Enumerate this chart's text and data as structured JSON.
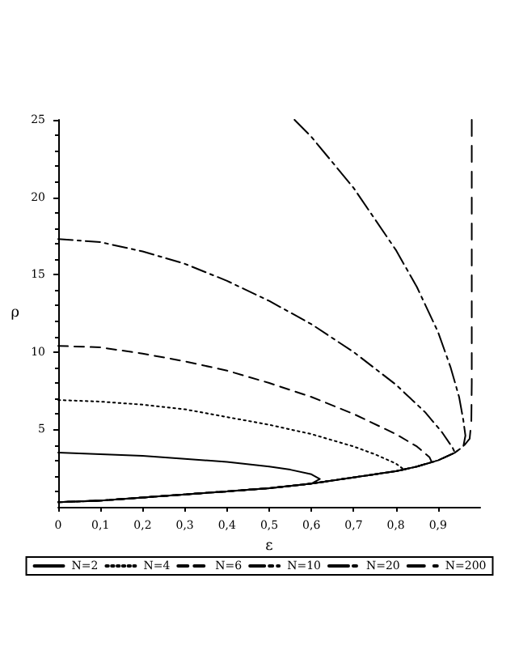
{
  "chart_data": {
    "type": "line",
    "xlabel": "ε",
    "ylabel": "ρ",
    "xlim": [
      0,
      1
    ],
    "ylim": [
      0,
      25
    ],
    "xticks": [
      0,
      {
        "value": 0.1,
        "label": "0,1"
      },
      {
        "value": 0.2,
        "label": "0,2"
      },
      {
        "value": 0.3,
        "label": "0,3"
      },
      {
        "value": 0.4,
        "label": "0,4"
      },
      {
        "value": 0.5,
        "label": "0,5"
      },
      {
        "value": 0.6,
        "label": "0,6"
      },
      {
        "value": 0.7,
        "label": "0,7"
      },
      {
        "value": 0.8,
        "label": "0,8"
      },
      {
        "value": 0.9,
        "label": "0,9"
      }
    ],
    "yticks": [
      5,
      10,
      15,
      20,
      25
    ],
    "legend": "bottom",
    "grid": false,
    "marker": "none",
    "series": [
      {
        "name": "N=2",
        "color": "#000000",
        "line_style": "solid",
        "x": [
          0,
          0.1,
          0.2,
          0.3,
          0.4,
          0.5,
          0.55,
          0.6,
          0.62,
          0.6,
          0.5,
          0.4,
          0.3,
          0.2,
          0.1,
          0
        ],
        "values": [
          3.5,
          3.4,
          3.3,
          3.1,
          2.9,
          2.6,
          2.4,
          2.1,
          1.8,
          1.5,
          1.2,
          1.0,
          0.8,
          0.6,
          0.4,
          0.3
        ]
      },
      {
        "name": "N=4",
        "color": "#000000",
        "line_style": "dotted",
        "x": [
          0,
          0.1,
          0.2,
          0.3,
          0.4,
          0.5,
          0.6,
          0.7,
          0.75,
          0.8,
          0.82,
          0.8,
          0.7,
          0.6,
          0.5,
          0.4,
          0.3,
          0.2,
          0.1,
          0
        ],
        "values": [
          6.9,
          6.8,
          6.6,
          6.3,
          5.8,
          5.3,
          4.7,
          3.9,
          3.4,
          2.8,
          2.4,
          2.3,
          1.9,
          1.5,
          1.2,
          1.0,
          0.8,
          0.6,
          0.4,
          0.3
        ]
      },
      {
        "name": "N=6",
        "color": "#000000",
        "line_style": "dashed",
        "x": [
          0,
          0.1,
          0.2,
          0.3,
          0.4,
          0.5,
          0.6,
          0.7,
          0.8,
          0.85,
          0.88,
          0.885,
          0.85,
          0.8,
          0.7,
          0.6,
          0.5,
          0.4,
          0.3,
          0.2,
          0.1,
          0
        ],
        "values": [
          10.4,
          10.3,
          9.9,
          9.4,
          8.8,
          8.0,
          7.1,
          6.0,
          4.7,
          3.9,
          3.2,
          2.9,
          2.6,
          2.3,
          1.9,
          1.5,
          1.2,
          1.0,
          0.8,
          0.6,
          0.4,
          0.3
        ]
      },
      {
        "name": "N=10",
        "color": "#000000",
        "line_style": "dashed",
        "x": [
          0,
          0.1,
          0.2,
          0.3,
          0.4,
          0.5,
          0.6,
          0.7,
          0.8,
          0.87,
          0.91,
          0.935,
          0.94,
          0.9,
          0.85,
          0.8,
          0.7,
          0.6,
          0.5,
          0.4,
          0.3,
          0.2,
          0.1,
          0
        ],
        "values": [
          17.3,
          17.1,
          16.5,
          15.7,
          14.6,
          13.3,
          11.8,
          10.0,
          7.9,
          6.1,
          4.8,
          3.8,
          3.5,
          3.0,
          2.6,
          2.3,
          1.9,
          1.5,
          1.2,
          1.0,
          0.8,
          0.6,
          0.4,
          0.3
        ]
      },
      {
        "name": "N=20",
        "color": "#000000",
        "line_style": "dashed",
        "x": [
          0.56,
          0.6,
          0.7,
          0.8,
          0.85,
          0.9,
          0.93,
          0.95,
          0.96,
          0.965,
          0.96,
          0.94,
          0.9,
          0.85,
          0.8,
          0.7,
          0.6,
          0.5,
          0.4,
          0.3,
          0.2,
          0.1,
          0
        ],
        "values": [
          25,
          23.9,
          20.6,
          16.6,
          14.2,
          11.3,
          9.0,
          7.1,
          5.6,
          4.6,
          3.9,
          3.5,
          3.0,
          2.6,
          2.3,
          1.9,
          1.5,
          1.2,
          1.0,
          0.8,
          0.6,
          0.4,
          0.3
        ]
      },
      {
        "name": "N=200",
        "color": "#000000",
        "line_style": "dashed",
        "x": [
          0.98,
          0.98,
          0.98,
          0.979,
          0.975,
          0.96,
          0.94,
          0.9,
          0.85,
          0.8,
          0.7,
          0.6,
          0.5,
          0.4,
          0.3,
          0.2,
          0.1,
          0
        ],
        "values": [
          25,
          15,
          8,
          5.5,
          4.4,
          3.9,
          3.5,
          3.0,
          2.6,
          2.3,
          1.9,
          1.5,
          1.2,
          1.0,
          0.8,
          0.6,
          0.4,
          0.3
        ]
      }
    ]
  }
}
